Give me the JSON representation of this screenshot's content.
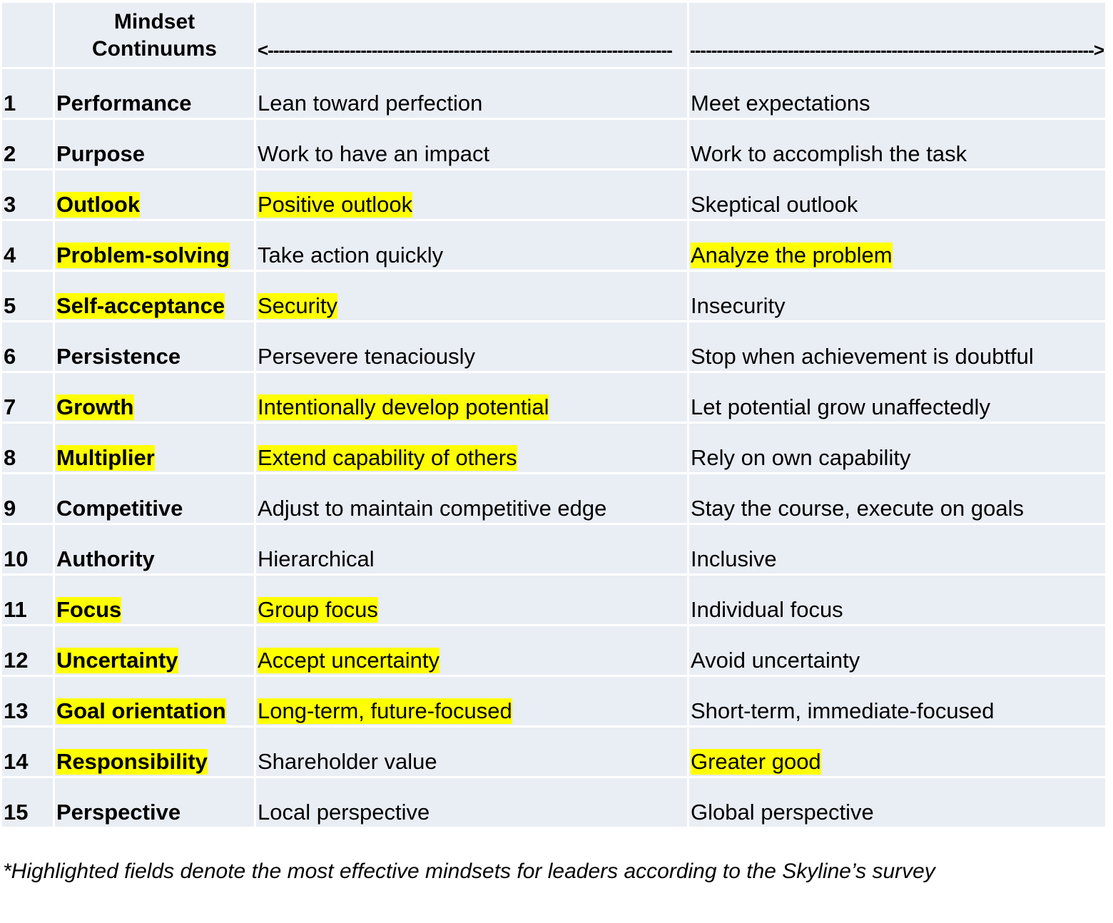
{
  "header": {
    "title_line1": "Mindset",
    "title_line2": "Continuums",
    "left_arrow": "<--------------------------------------------------------------------------",
    "right_arrow": "-------------------------------------------------------------------------->"
  },
  "highlight_color": "#ffff00",
  "rows": [
    {
      "num": "1",
      "name": "Performance",
      "left": "Lean toward perfection",
      "right": "Meet expectations",
      "hl": []
    },
    {
      "num": "2",
      "name": "Purpose",
      "left": "Work to have an impact",
      "right": "Work to accomplish the task",
      "hl": []
    },
    {
      "num": "3",
      "name": "Outlook",
      "left": "Positive outlook",
      "right": "Skeptical outlook",
      "hl": [
        "name",
        "left"
      ]
    },
    {
      "num": "4",
      "name": "Problem-solving",
      "left": "Take action quickly",
      "right": "Analyze the problem",
      "hl": [
        "name",
        "right"
      ]
    },
    {
      "num": "5",
      "name": "Self-acceptance",
      "left": "Security",
      "right": "Insecurity",
      "hl": [
        "name",
        "left"
      ]
    },
    {
      "num": "6",
      "name": "Persistence",
      "left": "Persevere tenaciously",
      "right": "Stop when achievement is doubtful",
      "hl": []
    },
    {
      "num": "7",
      "name": "Growth",
      "left": "Intentionally develop potential",
      "right": "Let potential grow unaffectedly",
      "hl": [
        "name",
        "left"
      ]
    },
    {
      "num": "8",
      "name": "Multiplier",
      "left": "Extend capability of others",
      "right": "Rely on own capability",
      "hl": [
        "name",
        "left"
      ]
    },
    {
      "num": "9",
      "name": "Competitive",
      "left": "Adjust to maintain competitive edge",
      "right": "Stay the course, execute on goals",
      "hl": []
    },
    {
      "num": "10",
      "name": "Authority",
      "left": "Hierarchical",
      "right": "Inclusive",
      "hl": []
    },
    {
      "num": "11",
      "name": "Focus",
      "left": "Group focus",
      "right": "Individual focus",
      "hl": [
        "name",
        "left"
      ]
    },
    {
      "num": "12",
      "name": "Uncertainty",
      "left": "Accept uncertainty",
      "right": "Avoid uncertainty",
      "hl": [
        "name",
        "left"
      ]
    },
    {
      "num": "13",
      "name": "Goal orientation",
      "left": "Long-term, future-focused",
      "right": "Short-term, immediate-focused",
      "hl": [
        "name",
        "left"
      ]
    },
    {
      "num": "14",
      "name": "Responsibility",
      "left": "Shareholder value",
      "right": "Greater good",
      "hl": [
        "name",
        "right"
      ]
    },
    {
      "num": "15",
      "name": "Perspective",
      "left": "Local perspective",
      "right": "Global perspective",
      "hl": []
    }
  ],
  "footnote": "*Highlighted fields denote the most effective mindsets for leaders according to the Skyline’s survey"
}
